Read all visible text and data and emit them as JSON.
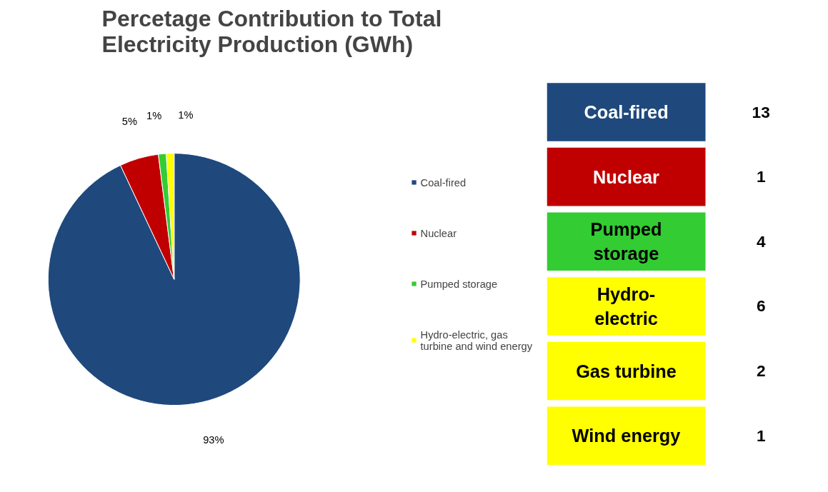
{
  "chart_data": [
    {
      "type": "pie",
      "title": "Percetage Contribution to Total Electricity Production (GWh)",
      "categories": [
        "Coal-fired",
        "Nuclear",
        "Pumped storage",
        "Hydro-electric, gas turbine and wind energy"
      ],
      "values": [
        93,
        5,
        1,
        1
      ],
      "colors": [
        "#1f497d",
        "#c00000",
        "#33cc33",
        "#ffff00"
      ],
      "value_labels": [
        "93%",
        "5%",
        "1%",
        "1%"
      ],
      "legend": "right"
    },
    {
      "type": "other",
      "categories": [
        "Coal-fired",
        "Nuclear",
        "Pumped storage",
        "Hydro-electric",
        "Gas turbine",
        "Wind energy"
      ],
      "values": [
        13,
        1,
        4,
        6,
        2,
        1
      ],
      "data_labels": true,
      "colors": [
        "#1f497d",
        "#c00000",
        "#33cc33",
        "#ffff00",
        "#ffff00",
        "#ffff00"
      ]
    }
  ]
}
